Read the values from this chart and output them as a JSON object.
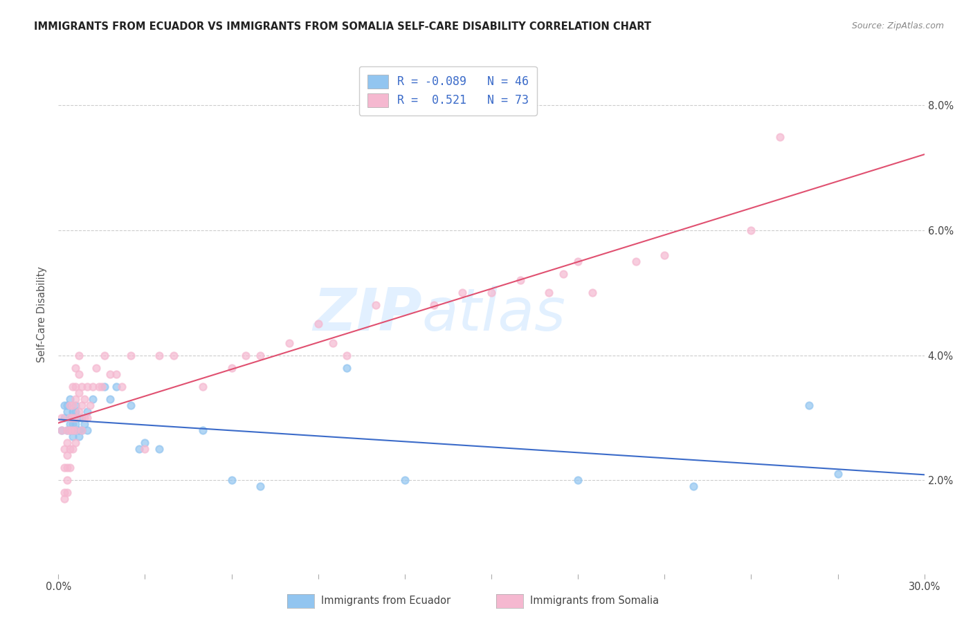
{
  "title": "IMMIGRANTS FROM ECUADOR VS IMMIGRANTS FROM SOMALIA SELF-CARE DISABILITY CORRELATION CHART",
  "source": "Source: ZipAtlas.com",
  "ylabel": "Self-Care Disability",
  "xlim": [
    0.0,
    0.3
  ],
  "ylim": [
    0.005,
    0.088
  ],
  "yticks": [
    0.02,
    0.04,
    0.06,
    0.08
  ],
  "ytick_labels": [
    "2.0%",
    "4.0%",
    "6.0%",
    "8.0%"
  ],
  "xticks": [
    0.0,
    0.03,
    0.06,
    0.09,
    0.12,
    0.15,
    0.18,
    0.21,
    0.24,
    0.27,
    0.3
  ],
  "xtick_labels": [
    "0.0%",
    "",
    "",
    "",
    "",
    "",
    "",
    "",
    "",
    "",
    "30.0%"
  ],
  "ecuador_color": "#92C5F0",
  "somalia_color": "#F5B8D0",
  "ecuador_R": -0.089,
  "ecuador_N": 46,
  "somalia_R": 0.521,
  "somalia_N": 73,
  "trend_ecuador_color": "#3B6BC9",
  "trend_somalia_color": "#E05070",
  "watermark_zip": "ZIP",
  "watermark_atlas": "atlas",
  "background_color": "#FFFFFF",
  "ecuador_points_x": [
    0.001,
    0.002,
    0.002,
    0.003,
    0.003,
    0.003,
    0.004,
    0.004,
    0.004,
    0.004,
    0.005,
    0.005,
    0.005,
    0.005,
    0.005,
    0.005,
    0.006,
    0.006,
    0.006,
    0.006,
    0.006,
    0.007,
    0.007,
    0.007,
    0.008,
    0.008,
    0.009,
    0.01,
    0.01,
    0.012,
    0.016,
    0.018,
    0.02,
    0.025,
    0.028,
    0.03,
    0.035,
    0.05,
    0.06,
    0.07,
    0.1,
    0.12,
    0.18,
    0.22,
    0.26,
    0.27
  ],
  "ecuador_points_y": [
    0.028,
    0.032,
    0.03,
    0.032,
    0.031,
    0.028,
    0.033,
    0.03,
    0.029,
    0.028,
    0.031,
    0.03,
    0.03,
    0.029,
    0.028,
    0.027,
    0.032,
    0.031,
    0.03,
    0.029,
    0.028,
    0.03,
    0.028,
    0.027,
    0.03,
    0.028,
    0.029,
    0.031,
    0.028,
    0.033,
    0.035,
    0.033,
    0.035,
    0.032,
    0.025,
    0.026,
    0.025,
    0.028,
    0.02,
    0.019,
    0.038,
    0.02,
    0.02,
    0.019,
    0.032,
    0.021
  ],
  "somalia_points_x": [
    0.001,
    0.001,
    0.002,
    0.002,
    0.002,
    0.002,
    0.003,
    0.003,
    0.003,
    0.003,
    0.003,
    0.003,
    0.004,
    0.004,
    0.004,
    0.004,
    0.004,
    0.005,
    0.005,
    0.005,
    0.005,
    0.005,
    0.006,
    0.006,
    0.006,
    0.006,
    0.006,
    0.006,
    0.007,
    0.007,
    0.007,
    0.007,
    0.008,
    0.008,
    0.008,
    0.009,
    0.009,
    0.01,
    0.01,
    0.011,
    0.012,
    0.013,
    0.014,
    0.015,
    0.016,
    0.018,
    0.02,
    0.022,
    0.025,
    0.03,
    0.035,
    0.04,
    0.05,
    0.06,
    0.065,
    0.07,
    0.08,
    0.09,
    0.095,
    0.1,
    0.11,
    0.13,
    0.14,
    0.15,
    0.16,
    0.17,
    0.175,
    0.18,
    0.185,
    0.2,
    0.21,
    0.24,
    0.25
  ],
  "somalia_points_y": [
    0.03,
    0.028,
    0.025,
    0.022,
    0.018,
    0.017,
    0.028,
    0.026,
    0.024,
    0.022,
    0.02,
    0.018,
    0.032,
    0.03,
    0.028,
    0.025,
    0.022,
    0.035,
    0.032,
    0.03,
    0.028,
    0.025,
    0.038,
    0.035,
    0.033,
    0.03,
    0.028,
    0.026,
    0.04,
    0.037,
    0.034,
    0.031,
    0.035,
    0.032,
    0.028,
    0.033,
    0.03,
    0.035,
    0.03,
    0.032,
    0.035,
    0.038,
    0.035,
    0.035,
    0.04,
    0.037,
    0.037,
    0.035,
    0.04,
    0.025,
    0.04,
    0.04,
    0.035,
    0.038,
    0.04,
    0.04,
    0.042,
    0.045,
    0.042,
    0.04,
    0.048,
    0.048,
    0.05,
    0.05,
    0.052,
    0.05,
    0.053,
    0.055,
    0.05,
    0.055,
    0.056,
    0.06,
    0.075
  ]
}
